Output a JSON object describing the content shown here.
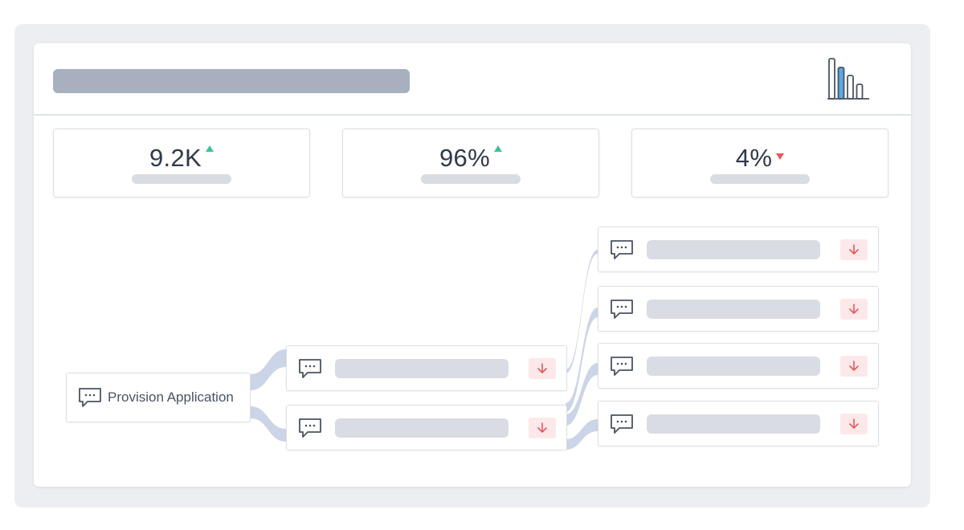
{
  "header": {
    "chart_icon": "bar-chart-icon"
  },
  "kpis": [
    {
      "value": "9.2K",
      "trend": "up"
    },
    {
      "value": "96%",
      "trend": "up"
    },
    {
      "value": "4%",
      "trend": "down"
    }
  ],
  "flow": {
    "root": {
      "label": "Provision Application",
      "icon": "chat-bubble-icon"
    },
    "level1": [
      {
        "icon": "chat-bubble-icon",
        "action_icon": "arrow-down-icon"
      },
      {
        "icon": "chat-bubble-icon",
        "action_icon": "arrow-down-icon"
      }
    ],
    "level2": [
      {
        "icon": "chat-bubble-icon",
        "action_icon": "arrow-down-icon"
      },
      {
        "icon": "chat-bubble-icon",
        "action_icon": "arrow-down-icon"
      },
      {
        "icon": "chat-bubble-icon",
        "action_icon": "arrow-down-icon"
      },
      {
        "icon": "chat-bubble-icon",
        "action_icon": "arrow-down-icon"
      }
    ]
  },
  "colors": {
    "trend_up": "#3cc394",
    "trend_down": "#e8585c",
    "flow": "#ccd4e8",
    "accent_bar": "#5aa8e0"
  }
}
